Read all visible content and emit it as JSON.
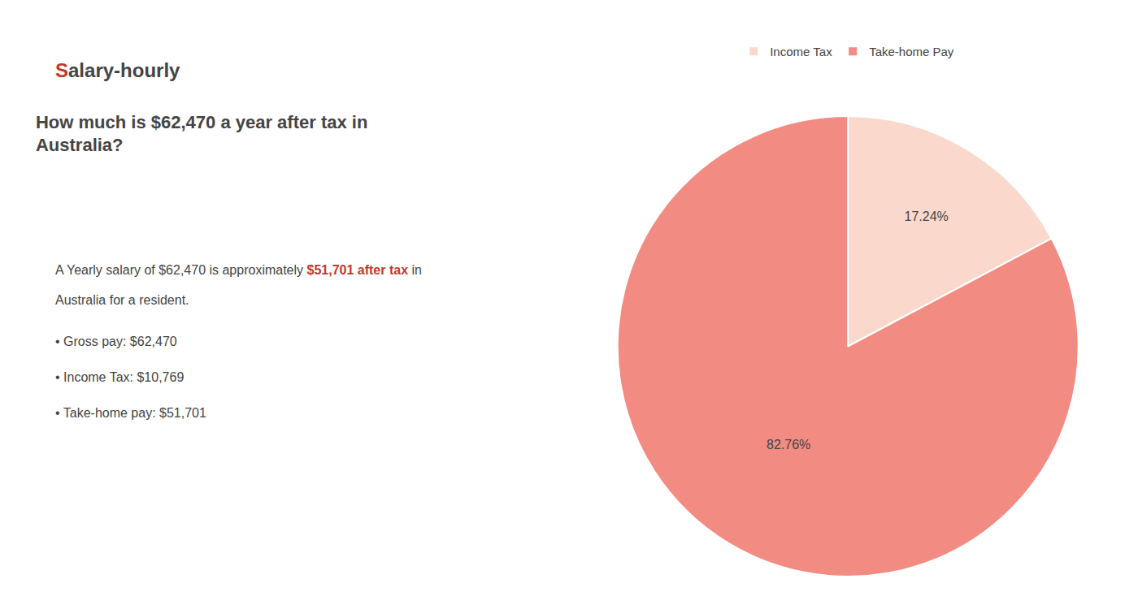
{
  "chart_data": {
    "type": "pie",
    "title": "How much is $62,470 a year after tax in\nAustralia?",
    "categories": [
      "Income Tax",
      "Take-home Pay"
    ],
    "values": [
      17.24,
      82.76
    ],
    "value_labels": [
      "17.24%",
      "82.76%"
    ],
    "colors": [
      "#fad9cc",
      "#f28b82"
    ],
    "data_labels": true,
    "legend": "top",
    "annotations": [
      [
        {
          "text": "S",
          "color": "#c0392b"
        },
        {
          "text": "alary-hourly"
        }
      ],
      [
        {
          "text": "A Yearly salary of $62,470 is approximately "
        },
        {
          "text": "$51,701 after tax",
          "color": "#c0392b"
        },
        {
          "text": " in"
        }
      ],
      "Australia for a resident.",
      "• Gross pay: $62,470",
      "• Income Tax: $10,769",
      "• Take-home pay: $51,701"
    ]
  }
}
